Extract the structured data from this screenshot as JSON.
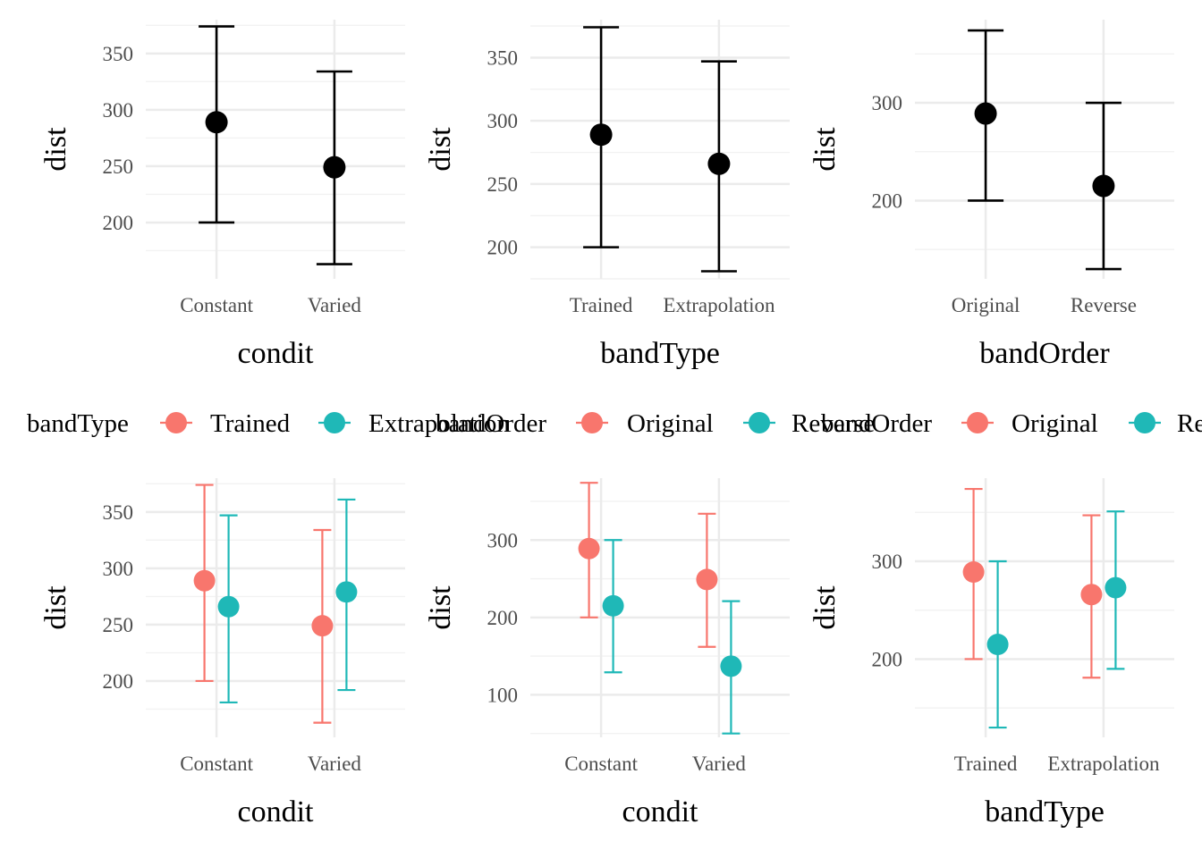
{
  "colors": {
    "single": "#000000",
    "series1": "#F8766D",
    "series2": "#1FB8B7",
    "grid_major": "#EBEBEB",
    "grid_minor": "#F2F2F2"
  },
  "chart_data": [
    {
      "type": "errorbar",
      "xlabel": "condit",
      "ylabel": "dist",
      "categories": [
        "Constant",
        "Varied"
      ],
      "ylim": [
        150,
        380
      ],
      "yticks": [
        200,
        250,
        300,
        350
      ],
      "legend": null,
      "series": [
        {
          "mean": [
            289,
            249
          ],
          "lower": [
            200,
            163
          ],
          "upper": [
            374,
            334
          ]
        }
      ]
    },
    {
      "type": "errorbar",
      "xlabel": "bandType",
      "ylabel": "dist",
      "categories": [
        "Trained",
        "Extrapolation"
      ],
      "ylim": [
        175,
        380
      ],
      "yticks": [
        200,
        250,
        300,
        350
      ],
      "legend": null,
      "series": [
        {
          "mean": [
            289,
            266
          ],
          "lower": [
            200,
            181
          ],
          "upper": [
            374,
            347
          ]
        }
      ]
    },
    {
      "type": "errorbar",
      "xlabel": "bandOrder",
      "ylabel": "dist",
      "categories": [
        "Original",
        "Reverse"
      ],
      "ylim": [
        120,
        385
      ],
      "yticks": [
        200,
        300
      ],
      "legend": null,
      "series": [
        {
          "mean": [
            289,
            215
          ],
          "lower": [
            200,
            130
          ],
          "upper": [
            374,
            300
          ]
        }
      ]
    },
    {
      "type": "errorbar",
      "xlabel": "condit",
      "ylabel": "dist",
      "categories": [
        "Constant",
        "Varied"
      ],
      "ylim": [
        150,
        380
      ],
      "yticks": [
        200,
        250,
        300,
        350
      ],
      "legend": {
        "title": "bandType",
        "labels": [
          "Trained",
          "Extrapolation"
        ]
      },
      "series": [
        {
          "name": "Trained",
          "mean": [
            289,
            249
          ],
          "lower": [
            200,
            163
          ],
          "upper": [
            374,
            334
          ]
        },
        {
          "name": "Extrapolation",
          "mean": [
            266,
            279
          ],
          "lower": [
            181,
            192
          ],
          "upper": [
            347,
            361
          ]
        }
      ]
    },
    {
      "type": "errorbar",
      "xlabel": "condit",
      "ylabel": "dist",
      "categories": [
        "Constant",
        "Varied"
      ],
      "ylim": [
        45,
        380
      ],
      "yticks": [
        100,
        200,
        300
      ],
      "legend": {
        "title": "bandOrder",
        "labels": [
          "Original",
          "Reverse"
        ]
      },
      "series": [
        {
          "name": "Original",
          "mean": [
            289,
            249
          ],
          "lower": [
            200,
            162
          ],
          "upper": [
            374,
            334
          ]
        },
        {
          "name": "Reverse",
          "mean": [
            215,
            137
          ],
          "lower": [
            129,
            50
          ],
          "upper": [
            300,
            221
          ]
        }
      ]
    },
    {
      "type": "errorbar",
      "xlabel": "bandType",
      "ylabel": "dist",
      "categories": [
        "Trained",
        "Extrapolation"
      ],
      "ylim": [
        120,
        385
      ],
      "yticks": [
        200,
        300
      ],
      "legend": {
        "title": "bandOrder",
        "labels": [
          "Original",
          "Reverse"
        ]
      },
      "series": [
        {
          "name": "Original",
          "mean": [
            289,
            266
          ],
          "lower": [
            200,
            181
          ],
          "upper": [
            374,
            347
          ]
        },
        {
          "name": "Reverse",
          "mean": [
            215,
            273
          ],
          "lower": [
            130,
            190
          ],
          "upper": [
            300,
            351
          ]
        }
      ]
    }
  ]
}
